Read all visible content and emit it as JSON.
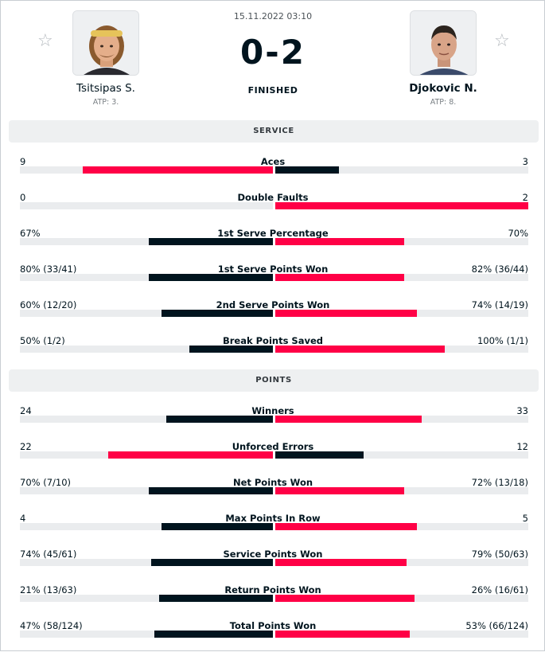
{
  "header": {
    "date": "15.11.2022 03:10",
    "score": "0-2",
    "status": "FINISHED",
    "star_icon": "star-outline-icon",
    "home": {
      "name": "Tsitsipas S.",
      "rank": "ATP: 3."
    },
    "away": {
      "name": "Djokovic N.",
      "rank": "ATP: 8."
    }
  },
  "colors": {
    "win": "#ff0046",
    "lose": "#00141e",
    "track": "#eaecee"
  },
  "sections": [
    {
      "title": "SERVICE",
      "stats": [
        {
          "name": "Aces",
          "home": "9",
          "away": "3",
          "home_frac": 0.75,
          "away_frac": 0.25,
          "winner": "home"
        },
        {
          "name": "Double Faults",
          "home": "0",
          "away": "2",
          "home_frac": 0.0,
          "away_frac": 1.0,
          "winner": "away"
        },
        {
          "name": "1st Serve Percentage",
          "home": "67%",
          "away": "70%",
          "home_frac": 0.49,
          "away_frac": 0.51,
          "winner": "away"
        },
        {
          "name": "1st Serve Points Won",
          "home": "80% (33/41)",
          "away": "82% (36/44)",
          "home_frac": 0.49,
          "away_frac": 0.51,
          "winner": "away"
        },
        {
          "name": "2nd Serve Points Won",
          "home": "60% (12/20)",
          "away": "74% (14/19)",
          "home_frac": 0.44,
          "away_frac": 0.56,
          "winner": "away"
        },
        {
          "name": "Break Points Saved",
          "home": "50% (1/2)",
          "away": "100% (1/1)",
          "home_frac": 0.33,
          "away_frac": 0.67,
          "winner": "away"
        }
      ]
    },
    {
      "title": "POINTS",
      "stats": [
        {
          "name": "Winners",
          "home": "24",
          "away": "33",
          "home_frac": 0.42,
          "away_frac": 0.58,
          "winner": "away"
        },
        {
          "name": "Unforced Errors",
          "home": "22",
          "away": "12",
          "home_frac": 0.65,
          "away_frac": 0.35,
          "winner": "home"
        },
        {
          "name": "Net Points Won",
          "home": "70% (7/10)",
          "away": "72% (13/18)",
          "home_frac": 0.49,
          "away_frac": 0.51,
          "winner": "away"
        },
        {
          "name": "Max Points In Row",
          "home": "4",
          "away": "5",
          "home_frac": 0.44,
          "away_frac": 0.56,
          "winner": "away"
        },
        {
          "name": "Service Points Won",
          "home": "74% (45/61)",
          "away": "79% (50/63)",
          "home_frac": 0.48,
          "away_frac": 0.52,
          "winner": "away"
        },
        {
          "name": "Return Points Won",
          "home": "21% (13/63)",
          "away": "26% (16/61)",
          "home_frac": 0.45,
          "away_frac": 0.55,
          "winner": "away"
        },
        {
          "name": "Total Points Won",
          "home": "47% (58/124)",
          "away": "53% (66/124)",
          "home_frac": 0.47,
          "away_frac": 0.53,
          "winner": "away"
        }
      ]
    }
  ]
}
